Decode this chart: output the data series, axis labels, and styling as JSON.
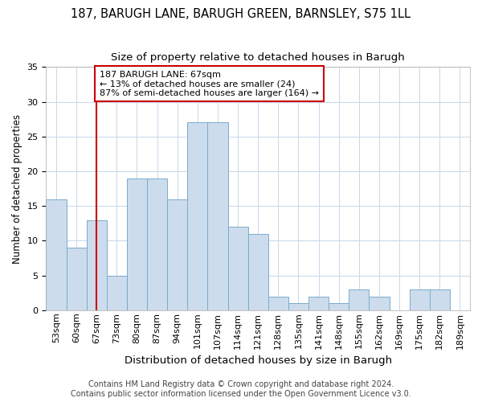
{
  "title1": "187, BARUGH LANE, BARUGH GREEN, BARNSLEY, S75 1LL",
  "title2": "Size of property relative to detached houses in Barugh",
  "xlabel": "Distribution of detached houses by size in Barugh",
  "ylabel": "Number of detached properties",
  "bin_labels": [
    "53sqm",
    "60sqm",
    "67sqm",
    "73sqm",
    "80sqm",
    "87sqm",
    "94sqm",
    "101sqm",
    "107sqm",
    "114sqm",
    "121sqm",
    "128sqm",
    "135sqm",
    "141sqm",
    "148sqm",
    "155sqm",
    "162sqm",
    "169sqm",
    "175sqm",
    "182sqm",
    "189sqm"
  ],
  "values": [
    16,
    9,
    13,
    5,
    19,
    19,
    16,
    27,
    27,
    12,
    11,
    2,
    1,
    2,
    1,
    3,
    2,
    0,
    3,
    3
  ],
  "bar_color": "#ccdcec",
  "bar_edge_color": "#7aaan",
  "vline_label_index": 2,
  "vline_color": "#cc0000",
  "annotation_text": "187 BARUGH LANE: 67sqm\n← 13% of detached houses are smaller (24)\n87% of semi-detached houses are larger (164) →",
  "annotation_box_color": "#ffffff",
  "annotation_box_edge_color": "#cc0000",
  "ylim": [
    0,
    35
  ],
  "yticks": [
    0,
    5,
    10,
    15,
    20,
    25,
    30,
    35
  ],
  "footer1": "Contains HM Land Registry data © Crown copyright and database right 2024.",
  "footer2": "Contains public sector information licensed under the Open Government Licence v3.0.",
  "title1_fontsize": 10.5,
  "title2_fontsize": 9.5,
  "xlabel_fontsize": 9.5,
  "ylabel_fontsize": 8.5,
  "tick_fontsize": 8,
  "annotation_fontsize": 8,
  "footer_fontsize": 7
}
